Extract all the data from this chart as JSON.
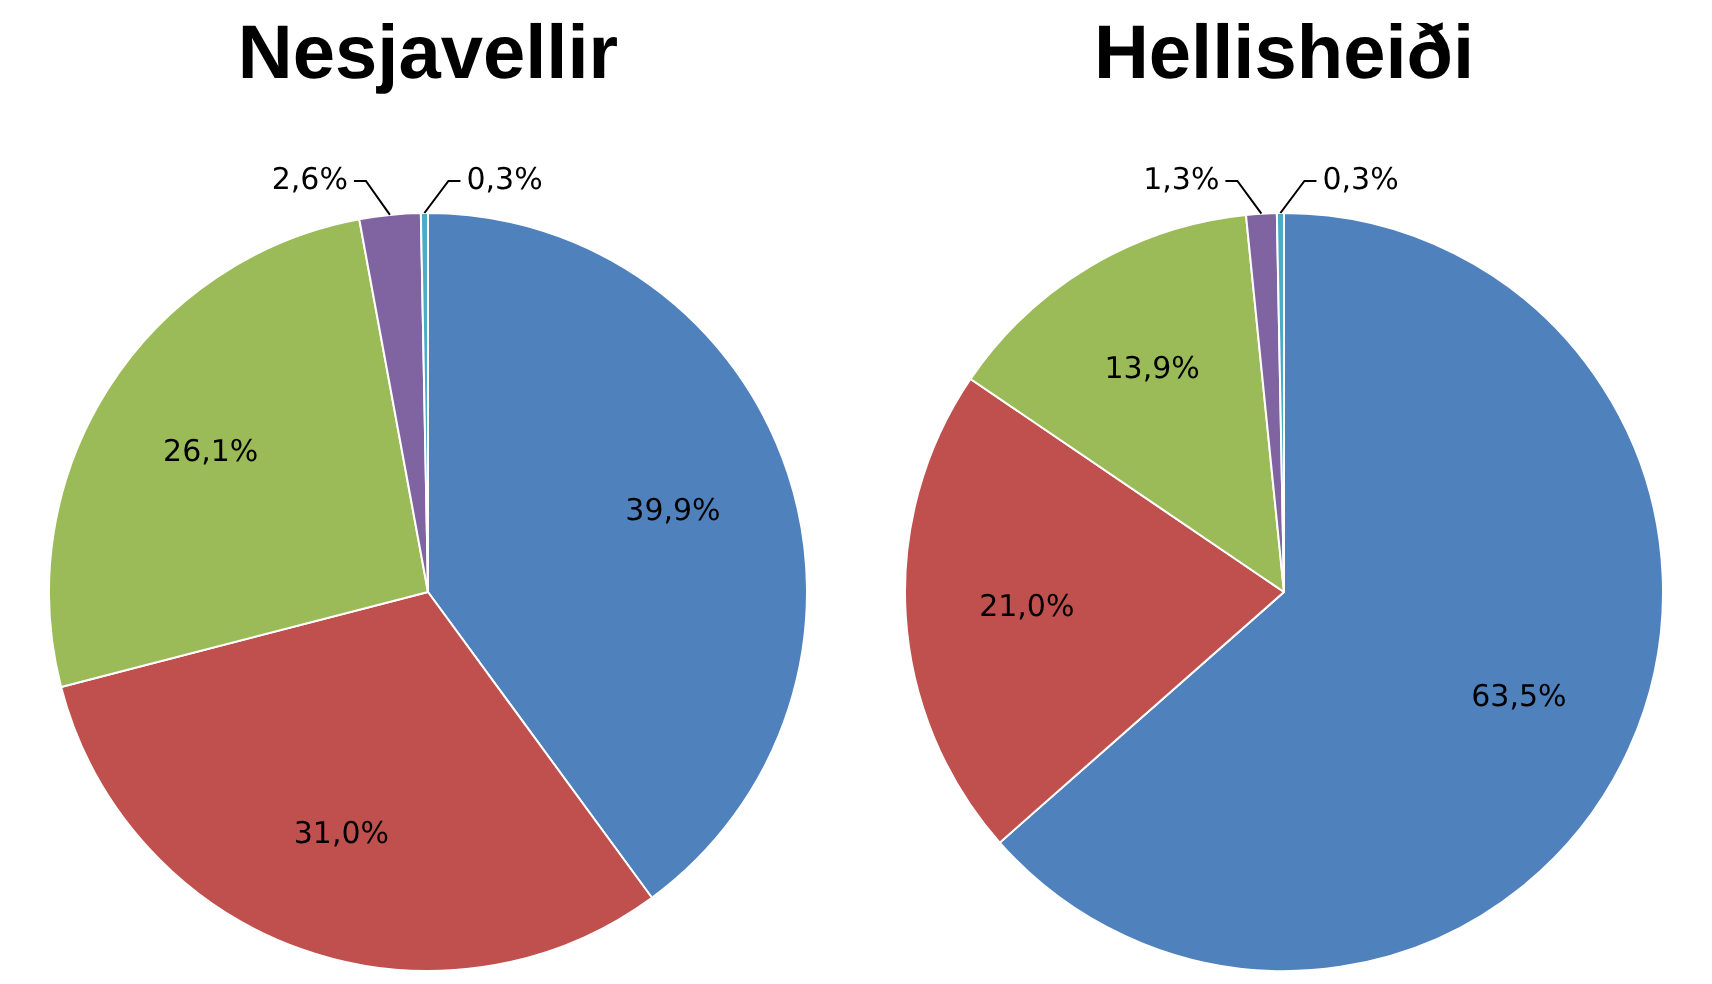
{
  "chart_data": [
    {
      "type": "pie",
      "title": "Nesjavellir",
      "categories": [
        null,
        null,
        null,
        null,
        null
      ],
      "values": [
        39.9,
        31.0,
        26.1,
        2.6,
        0.3
      ],
      "colors": [
        "#4f81bd",
        "#c0504d",
        "#9bbb59",
        "#8064a2",
        "#4bacc6"
      ],
      "value_labels": [
        "39,9%",
        "31,0%",
        "26,1%",
        "2,6%",
        "0,3%"
      ],
      "legend": false
    },
    {
      "type": "pie",
      "title": "Hellisheiði",
      "categories": [
        null,
        null,
        null,
        null,
        null
      ],
      "values": [
        63.5,
        21.0,
        13.9,
        1.3,
        0.3
      ],
      "colors": [
        "#4f81bd",
        "#c0504d",
        "#9bbb59",
        "#8064a2",
        "#4bacc6"
      ],
      "value_labels": [
        "63,5%",
        "21,0%",
        "13,9%",
        "1,3%",
        "0,3%"
      ],
      "legend": false
    }
  ]
}
